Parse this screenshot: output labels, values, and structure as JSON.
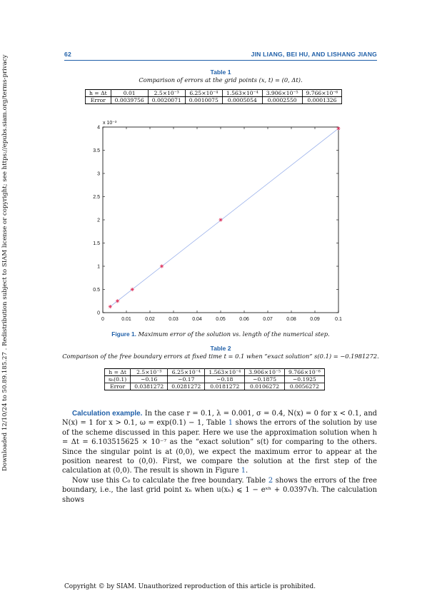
{
  "header": {
    "page_number": "62",
    "authors": "JIN LIANG, BEI HU, AND LISHANG JIANG"
  },
  "side_note": "Downloaded 12/10/24 to 50.89.185.27 . Redistribution subject to SIAM license or copyright; see https://epubs.siam.org/terms-privacy",
  "table1": {
    "label": "Table 1",
    "caption": "Comparison of errors at the grid points (x, t) = (0, Δt).",
    "header_cells": [
      "h = Δt",
      "0.01",
      "2.5×10⁻³",
      "6.25×10⁻⁴",
      "1.563×10⁻⁴",
      "3.906×10⁻⁵",
      "9.766×10⁻⁶"
    ],
    "row_cells": [
      "Error",
      "0.0039756",
      "0.0020071",
      "0.0010075",
      "0.0005054",
      "0.0002550",
      "0.0001326"
    ]
  },
  "figure1": {
    "label": "Figure 1.",
    "caption": "Maximum error of the solution vs. length of the numerical step.",
    "exponent_label": "x 10⁻³"
  },
  "chart_data": {
    "type": "scatter",
    "title": "",
    "xlabel": "",
    "ylabel": "",
    "xlim": [
      0,
      0.1
    ],
    "ylim": [
      0,
      4
    ],
    "x_ticks": [
      "0",
      "0.01",
      "0.02",
      "0.03",
      "0.04",
      "0.05",
      "0.06",
      "0.07",
      "0.08",
      "0.09",
      "0.1"
    ],
    "y_ticks": [
      "0",
      "0.5",
      "1",
      "1.5",
      "2",
      "2.5",
      "3",
      "3.5",
      "4"
    ],
    "y_multiplier": "x 10⁻³",
    "series": [
      {
        "marker": "star",
        "color": "#e0305a",
        "x": [
          0.003125,
          0.00625,
          0.0125,
          0.025,
          0.05,
          0.1
        ],
        "y": [
          0.13,
          0.25,
          0.5,
          1.0,
          2.0,
          3.97
        ]
      }
    ],
    "fit_line": {
      "color": "#8fa8e8",
      "x": [
        0.003125,
        0.1
      ],
      "y": [
        0.13,
        3.97
      ]
    },
    "grid": false
  },
  "table2": {
    "label": "Table 2",
    "caption": "Comparison of the free boundary errors at fixed time t = 0.1 when “exact solution” s(0.1) = −0.1981272.",
    "header_cells": [
      "h = Δt",
      "2.5×10⁻³",
      "6.25×10⁻⁴",
      "1.563×10⁻⁴",
      "3.906×10⁻⁵",
      "9.766×10⁻⁶"
    ],
    "row2_cells": [
      "sₕ(0.1)",
      "−0.16",
      "−0.17",
      "−0.18",
      "−0.1875",
      "−0.1925"
    ],
    "row3_cells": [
      "Error",
      "0.0381272",
      "0.0281272",
      "0.0181272",
      "0.0106272",
      "0.0056272"
    ]
  },
  "body": {
    "runin": "Calculation example.",
    "p1_a": "In the case r = 0.1, λ = 0.001, σ = 0.4, N(x) = 0 for x < 0.1, and N(x) = 1 for x > 0.1, ω = exp(0.1) − 1, Table ",
    "p1_ref1": "1",
    "p1_b": " shows the errors of the solution by use of the scheme discussed in this paper. Here we use the approximation solution when h = Δt = 6.103515625 × 10⁻⁷ as the “exact solution” s(t) for comparing to the others. Since the singular point is at (0,0), we expect the maximum error to appear at the position nearest to (0,0). First, we compare the solution at the first step of the calculation at (0,0). The result is shown in Figure ",
    "p1_ref2": "1",
    "p1_c": ".",
    "p2_a": "Now use this C₀ to calculate the free boundary. Table ",
    "p2_ref": "2",
    "p2_b": " shows the errors of the free boundary, i.e., the last grid point xₕ when u(xₕ) ⩽ 1 − eˣʰ + 0.0397√h. The calculation shows"
  },
  "footer": "Copyright © by SIAM. Unauthorized reproduction of this article is prohibited."
}
